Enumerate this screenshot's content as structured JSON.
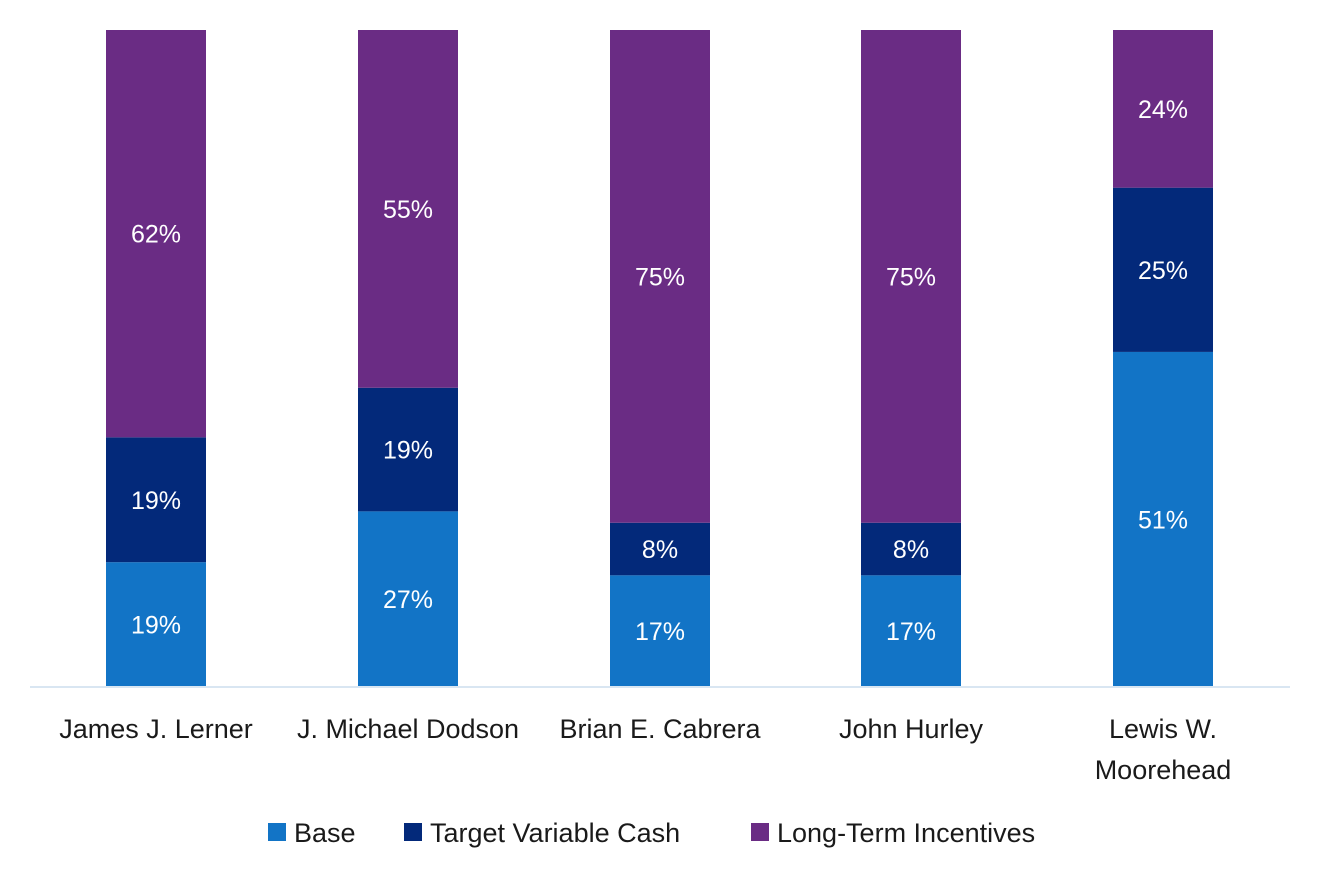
{
  "chart_data": {
    "type": "bar",
    "stacked": true,
    "percent_stacked": true,
    "categories": [
      [
        "James J. Lerner"
      ],
      [
        "J. Michael Dodson"
      ],
      [
        "Brian E. Cabrera"
      ],
      [
        "John Hurley"
      ],
      [
        "Lewis W.",
        "Moorehead"
      ]
    ],
    "series": [
      {
        "name": "Base",
        "color": "#1274C6",
        "values": [
          19,
          27,
          17,
          17,
          51
        ]
      },
      {
        "name": "Target Variable Cash",
        "color": "#03297A",
        "values": [
          19,
          19,
          8,
          8,
          25
        ]
      },
      {
        "name": "Long-Term Incentives",
        "color": "#6A2C84",
        "values": [
          62,
          55,
          75,
          75,
          24
        ]
      }
    ],
    "value_suffix": "%",
    "ylim": [
      0,
      100
    ],
    "grid": false,
    "legend": "bottom"
  }
}
